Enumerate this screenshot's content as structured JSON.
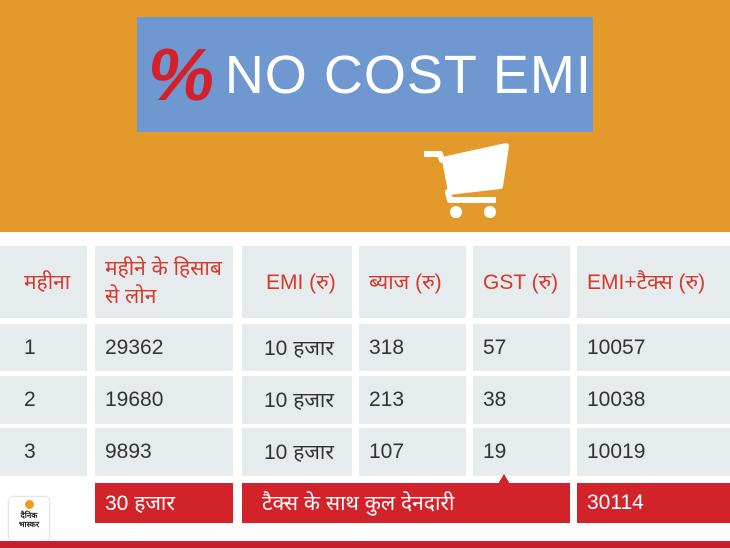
{
  "banner": {
    "percent_symbol": "%",
    "title": "NO COST EMI",
    "cart_icon": "shopping-cart-icon"
  },
  "table": {
    "headers": [
      "महीना",
      "महीने के हिसाब से लोन",
      "EMI (रु)",
      "ब्याज (रु)",
      "GST (रु)",
      "EMI+टैक्स (रु)"
    ],
    "rows": [
      [
        "1",
        "29362",
        "10 हजार",
        "318",
        "57",
        "10057"
      ],
      [
        "2",
        "19680",
        "10 हजार",
        "213",
        "38",
        "10038"
      ],
      [
        "3",
        "9893",
        "10 हजार",
        "107",
        "19",
        "10019"
      ]
    ],
    "total": {
      "loan": "30 हजार",
      "label": "टैक्स के साथ कुल देनदारी",
      "amount": "30114"
    }
  },
  "logo": {
    "text": "दैनिक भास्कर"
  },
  "colors": {
    "banner": "#E49A2A",
    "title_box": "#6F97D0",
    "accent_red": "#D2232A",
    "cell": "#E6EBEE",
    "header_text": "#D6392A"
  }
}
